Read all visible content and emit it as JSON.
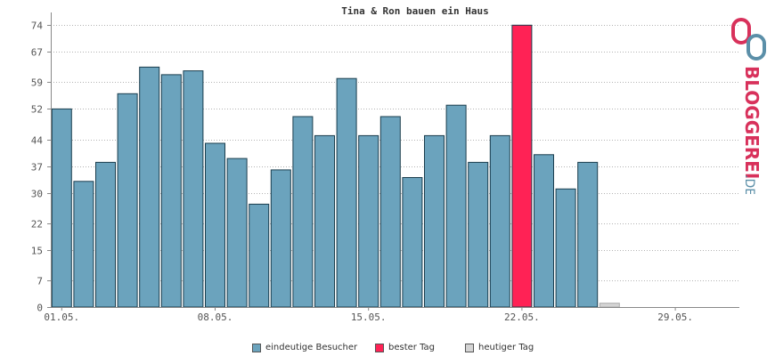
{
  "chart_data": {
    "type": "bar",
    "title": "Tina & Ron bauen ein Haus",
    "xlabel": "",
    "ylabel": "",
    "ylim": [
      0,
      75
    ],
    "yticks": [
      0,
      7,
      15,
      22,
      30,
      37,
      44,
      52,
      59,
      67,
      74
    ],
    "ytick_labels": [
      "0",
      "7",
      "15",
      "22",
      "30",
      "37",
      "44",
      "52",
      "59",
      "67",
      "74"
    ],
    "x_tick_labels": [
      "01.05.",
      "08.05.",
      "15.05.",
      "22.05.",
      "29.05."
    ],
    "x_tick_days": [
      1,
      8,
      15,
      22,
      29
    ],
    "days": [
      1,
      2,
      3,
      4,
      5,
      6,
      7,
      8,
      9,
      10,
      11,
      12,
      13,
      14,
      15,
      16,
      17,
      18,
      19,
      20,
      21,
      22,
      23,
      24,
      25,
      26,
      27,
      28,
      29,
      30,
      31
    ],
    "values": [
      52,
      33,
      38,
      56,
      63,
      61,
      62,
      43,
      39,
      27,
      36,
      50,
      45,
      60,
      45,
      50,
      34,
      45,
      53,
      38,
      45,
      74,
      40,
      31,
      38,
      1,
      0,
      0,
      0,
      0,
      0
    ],
    "best_day": 22,
    "today": 26,
    "grid": true,
    "legend_position": "bottom",
    "colors": {
      "bar": "#6ba3bd",
      "best": "#ff2255",
      "today": "#d4d4d4",
      "bar_stroke": "#1a3d4d",
      "grid": "#b3b3b3",
      "axis": "#888888"
    }
  },
  "legend": [
    {
      "label": "eindeutige Besucher",
      "color": "#6ba3bd"
    },
    {
      "label": "bester Tag",
      "color": "#ff2255"
    },
    {
      "label": "heutiger Tag",
      "color": "#d4d4d4"
    }
  ],
  "logo": {
    "text": "BLOGGEREI",
    "suffix": ".DE",
    "colors": {
      "primary": "#d8315b",
      "secondary": "#5b8fa8"
    }
  }
}
